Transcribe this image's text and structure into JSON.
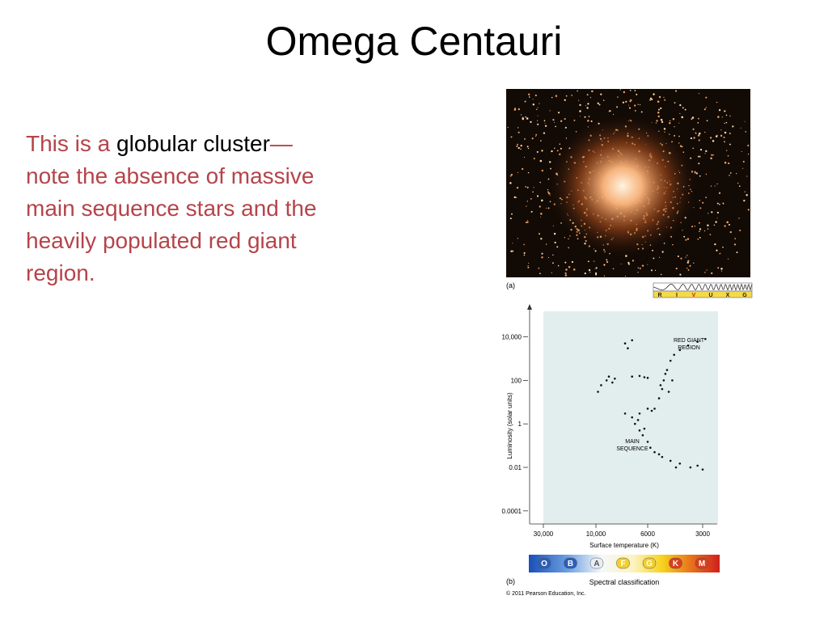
{
  "title": "Omega Centauri",
  "body": {
    "intro": "This is a ",
    "term": "globular cluster",
    "rest_lines": [
      "—",
      "note the absence of massive",
      "main sequence stars and the",
      "heavily populated red giant",
      "region."
    ]
  },
  "figure_a": {
    "label": "(a)",
    "bands": [
      "R",
      "I",
      "V",
      "U",
      "X",
      "G"
    ]
  },
  "chart_data": {
    "type": "scatter",
    "xlabel": "Surface temperature (K)",
    "ylabel": "Luminosity (solar units)",
    "xscale": "log",
    "yscale": "log",
    "color": "#111111",
    "xlim": [
      40000,
      2500
    ],
    "ylim": [
      2.5e-05,
      150000
    ],
    "xticks": [
      {
        "value": 30000,
        "label": "30,000"
      },
      {
        "value": 10000,
        "label": "10,000"
      },
      6000,
      3000
    ],
    "yticks": [
      {
        "value": 10000,
        "label": "10,000"
      },
      100,
      1,
      0.01,
      {
        "value": 0.0001,
        "label": "0.0001"
      }
    ],
    "x": [
      9800,
      9500,
      9000,
      8800,
      8500,
      8300,
      7000,
      6500,
      6200,
      6000,
      5500,
      5200,
      5000,
      4900,
      4700,
      4500,
      4300,
      4000,
      3600,
      3200,
      2900,
      5100,
      4800,
      4600,
      4400,
      7500,
      7000,
      6800,
      6500,
      6300,
      6000,
      5800,
      5500,
      5000,
      4500,
      4000,
      3500,
      3200,
      3000,
      6600,
      6200,
      5200,
      4200,
      6500,
      6000,
      5700,
      7500,
      7000,
      7300
    ],
    "y": [
      30,
      60,
      100,
      150,
      80,
      120,
      150,
      160,
      140,
      130,
      5,
      15,
      40,
      100,
      300,
      800,
      1500,
      2500,
      4000,
      6000,
      8000,
      60,
      200,
      30,
      100,
      3,
      2,
      1,
      0.5,
      0.3,
      0.15,
      0.08,
      0.05,
      0.03,
      0.02,
      0.015,
      0.01,
      0.012,
      0.008,
      1.5,
      0.6,
      0.04,
      0.01,
      3,
      5,
      4,
      5000,
      7000,
      3000
    ],
    "annotations": [
      [
        "RED GIANT",
        "REGION"
      ],
      [
        "MAIN",
        "SEQUENCE"
      ]
    ]
  },
  "figure_b": {
    "label": "(b)",
    "classes": [
      "O",
      "B",
      "A",
      "F",
      "G",
      "K",
      "M"
    ],
    "spectral_label": "Spectral classification",
    "credit": "© 2011 Pearson Education, Inc."
  }
}
